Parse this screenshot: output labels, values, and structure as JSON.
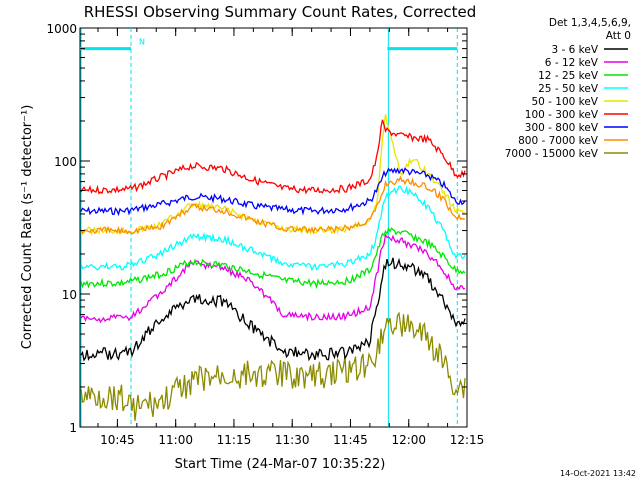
{
  "chart_data": {
    "type": "line",
    "title": "RHESSI Observing Summary Count Rates, Corrected",
    "xlabel": "Start Time (24-Mar-07 10:35:22)",
    "ylabel": "Corrected Count Rate (s⁻¹ detector⁻¹)",
    "y_scale": "log",
    "ylim": [
      1,
      1000
    ],
    "xlim": [
      "10:35:22",
      "12:15:00"
    ],
    "x_ticks": [
      "10:45",
      "11:00",
      "11:15",
      "11:30",
      "11:45",
      "12:00",
      "12:15"
    ],
    "y_ticks": [
      "1",
      "10",
      "100",
      "1000"
    ],
    "grid": false,
    "legend_header": [
      "Det 1,3,4,5,6,9,",
      "Att 0"
    ],
    "legend_position": "top-right outside plot",
    "footer_date": "14-Oct-2021 13:42",
    "flags": {
      "bar_color": "#00e5ee",
      "n_marker": "N",
      "segments": [
        [
          "10:35:22",
          "10:48:30"
        ],
        [
          "11:54:30",
          "12:12:30"
        ]
      ],
      "dashed_lines": [
        "10:48:30",
        "12:12:30"
      ],
      "solid_lines": [
        "10:35:22",
        "11:54:30"
      ]
    },
    "x": [
      "10:36",
      "10:46",
      "10:49",
      "10:56",
      "11:04",
      "11:12",
      "11:20",
      "11:28",
      "11:36",
      "11:44",
      "11:50",
      "11:52",
      "11:53",
      "11:54",
      "11:58",
      "12:01",
      "12:05",
      "12:09",
      "12:12"
    ],
    "series": [
      {
        "name": "3 - 6 keV",
        "color": "#000000",
        "values": [
          3.5,
          3.6,
          3.8,
          6.5,
          9.5,
          8.8,
          5.5,
          3.7,
          3.5,
          3.6,
          4.5,
          9,
          12,
          17,
          17,
          16,
          13,
          9,
          6
        ]
      },
      {
        "name": "6 - 12 keV",
        "color": "#e600e6",
        "values": [
          6.5,
          6.6,
          6.8,
          10,
          17,
          16,
          12,
          7,
          6.7,
          6.8,
          8,
          15,
          22,
          27,
          25,
          23,
          20,
          15,
          11
        ]
      },
      {
        "name": "12 - 25 keV",
        "color": "#00e600",
        "values": [
          12,
          12,
          12.5,
          14,
          17.5,
          16.5,
          14.5,
          12.5,
          12,
          12.5,
          15,
          21,
          26,
          30,
          29,
          27,
          24,
          19,
          15
        ]
      },
      {
        "name": "25 - 50 keV",
        "color": "#00ffff",
        "values": [
          16,
          16,
          16.5,
          20,
          27,
          26,
          21,
          17,
          16,
          17,
          20,
          28,
          42,
          55,
          62,
          58,
          45,
          30,
          19
        ]
      },
      {
        "name": "50 - 100 keV",
        "color": "#e6e600",
        "values": [
          30,
          30,
          30,
          33,
          47,
          44,
          36,
          31,
          30,
          31,
          36,
          50,
          130,
          220,
          80,
          105,
          80,
          60,
          42
        ]
      },
      {
        "name": "100 - 300 keV",
        "color": "#ff0000",
        "values": [
          60,
          61,
          62,
          75,
          92,
          88,
          72,
          62,
          60,
          62,
          72,
          110,
          200,
          170,
          155,
          150,
          145,
          110,
          80
        ]
      },
      {
        "name": "300 - 800 keV",
        "color": "#0000ff",
        "values": [
          42,
          42,
          43,
          47,
          54,
          52,
          46,
          43,
          42,
          44,
          50,
          62,
          72,
          82,
          86,
          82,
          78,
          66,
          50
        ]
      },
      {
        "name": "800 - 7000 keV",
        "color": "#ff8c00",
        "values": [
          30,
          30,
          30,
          32,
          45,
          43,
          36,
          31,
          30,
          31,
          36,
          46,
          55,
          68,
          72,
          70,
          63,
          52,
          38
        ]
      },
      {
        "name": "7000 - 15000 keV",
        "color": "#8b8b00",
        "values": [
          1.7,
          1.7,
          1.4,
          1.5,
          2.2,
          2.4,
          2.5,
          2.5,
          2.4,
          2.7,
          3,
          4,
          5,
          6,
          6,
          5.5,
          4.5,
          3,
          2
        ]
      }
    ]
  }
}
